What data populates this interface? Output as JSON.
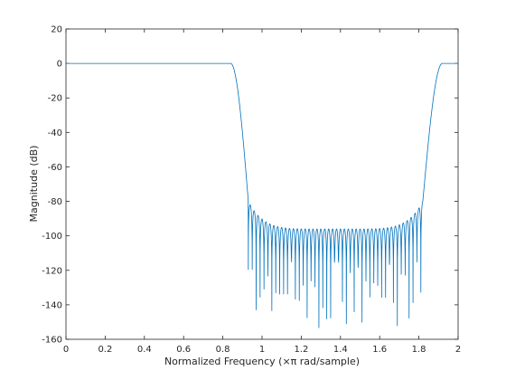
{
  "chart_data": {
    "type": "line",
    "title": "",
    "xlabel": "Normalized Frequency  (×π rad/sample)",
    "ylabel": "Magnitude (dB)",
    "xlim": [
      0,
      2
    ],
    "ylim": [
      -160,
      20
    ],
    "xticks": [
      "0",
      "0.2",
      "0.4",
      "0.6",
      "0.8",
      "1",
      "1.2",
      "1.4",
      "1.6",
      "1.8",
      "2"
    ],
    "yticks": [
      "20",
      "0",
      "-20",
      "-40",
      "-60",
      "-80",
      "-100",
      "-120",
      "-140",
      "-160"
    ],
    "grid": false,
    "legend": "none",
    "series_color": "#0072BD",
    "response": {
      "passband_db": 0,
      "passband_edges": [
        0.84,
        1.92
      ],
      "stopband_edges": [
        0.93,
        1.82
      ],
      "stopband_ripple_peak_db": [
        -80,
        -96
      ],
      "stopband_null_min_db": -154
    }
  }
}
